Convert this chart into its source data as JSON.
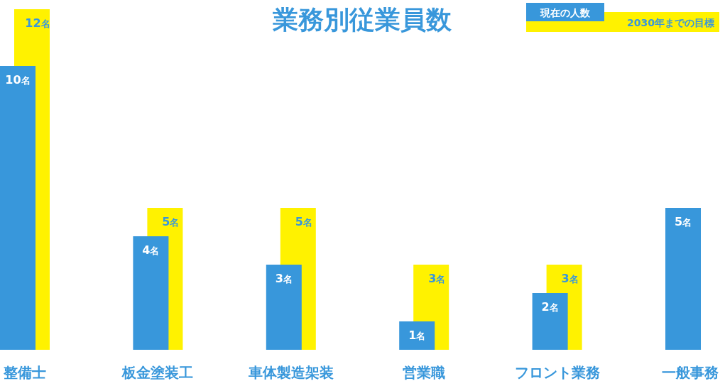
{
  "chart_data": {
    "type": "bar",
    "title": "業務別従業員数",
    "categories": [
      "整備士",
      "板金塗装工",
      "車体製造架装",
      "営業職",
      "フロント業務",
      "一般事務"
    ],
    "series": [
      {
        "name": "現在の人数",
        "color": "#3897db",
        "values": [
          10,
          4,
          3,
          1,
          2,
          5
        ],
        "value_labels": [
          "10名",
          "4名",
          "3名",
          "1名",
          "2名",
          "5名"
        ]
      },
      {
        "name": "2030年までの目標",
        "color": "#fff200",
        "values": [
          12,
          5,
          5,
          3,
          3,
          null
        ],
        "value_labels": [
          "12名",
          "5名",
          "5名",
          "3名",
          "3名",
          null
        ]
      }
    ],
    "legend": "top right"
  }
}
